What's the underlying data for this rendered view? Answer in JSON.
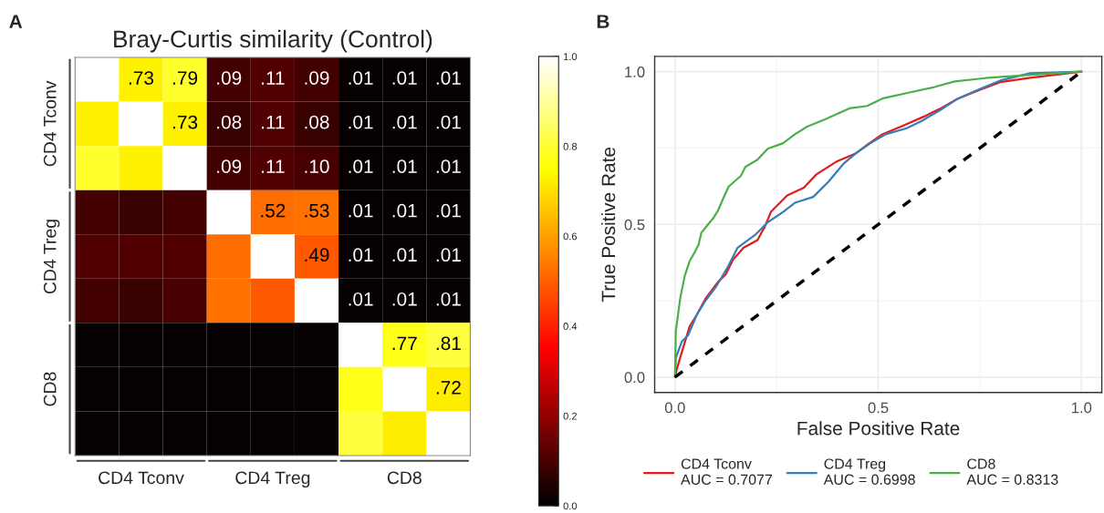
{
  "chart_data": [
    {
      "type": "heatmap",
      "title": "Bray-Curtis similarity (Control)",
      "annotations": [
        "A"
      ],
      "categories": [
        null,
        "CD4 Tconv",
        null,
        null,
        "CD4 Treg",
        null,
        null,
        "CD8",
        null
      ],
      "y_categories": [
        null,
        "CD4 Tconv",
        null,
        null,
        "CD4 Treg",
        null,
        null,
        "CD8",
        null
      ],
      "cells": [
        [
          1,
          0.73,
          0.79,
          0.09,
          0.11,
          0.09,
          0.01,
          0.01,
          0.01
        ],
        [
          0.73,
          1,
          0.73,
          0.08,
          0.11,
          0.08,
          0.01,
          0.01,
          0.01
        ],
        [
          0.79,
          0.73,
          1,
          0.09,
          0.11,
          0.1,
          0.01,
          0.01,
          0.01
        ],
        [
          0.09,
          0.08,
          0.09,
          1,
          0.52,
          0.53,
          0.01,
          0.01,
          0.01
        ],
        [
          0.11,
          0.11,
          0.11,
          0.52,
          1,
          0.49,
          0.01,
          0.01,
          0.01
        ],
        [
          0.09,
          0.08,
          0.1,
          0.53,
          0.49,
          1,
          0.01,
          0.01,
          0.01
        ],
        [
          0.01,
          0.01,
          0.01,
          0.01,
          0.01,
          0.01,
          1,
          0.77,
          0.81
        ],
        [
          0.01,
          0.01,
          0.01,
          0.01,
          0.01,
          0.01,
          0.77,
          1,
          0.72
        ],
        [
          0.01,
          0.01,
          0.01,
          0.01,
          0.01,
          0.01,
          0.81,
          0.72,
          1
        ]
      ],
      "cell_labels": [
        [
          null,
          ".73",
          ".79",
          ".09",
          ".11",
          ".09",
          ".01",
          ".01",
          ".01"
        ],
        [
          null,
          null,
          ".73",
          ".08",
          ".11",
          ".08",
          ".01",
          ".01",
          ".01"
        ],
        [
          null,
          null,
          null,
          ".09",
          ".11",
          ".10",
          ".01",
          ".01",
          ".01"
        ],
        [
          null,
          null,
          null,
          null,
          ".52",
          ".53",
          ".01",
          ".01",
          ".01"
        ],
        [
          null,
          null,
          null,
          null,
          null,
          ".49",
          ".01",
          ".01",
          ".01"
        ],
        [
          null,
          null,
          null,
          null,
          null,
          null,
          ".01",
          ".01",
          ".01"
        ],
        [
          null,
          null,
          null,
          null,
          null,
          null,
          null,
          ".77",
          ".81"
        ],
        [
          null,
          null,
          null,
          null,
          null,
          null,
          null,
          null,
          ".72"
        ],
        [
          null,
          null,
          null,
          null,
          null,
          null,
          null,
          null,
          null
        ]
      ],
      "clim": [
        0,
        1
      ],
      "cticks": [
        {
          "value": 0,
          "label": "0.0"
        },
        {
          "value": 0.2,
          "label": "0.2"
        },
        {
          "value": 0.4,
          "label": "0.4"
        },
        {
          "value": 0.6,
          "label": "0.6"
        },
        {
          "value": 0.8,
          "label": "0.8"
        },
        {
          "value": 1,
          "label": "1.0"
        }
      ]
    },
    {
      "type": "line",
      "annotations": [
        "B"
      ],
      "xlabel": "False Positive Rate",
      "ylabel": "True Positive Rate",
      "xlim": [
        -0.05,
        1.05
      ],
      "ylim": [
        -0.05,
        1.05
      ],
      "xticks": [
        {
          "value": 0,
          "label": "0.0"
        },
        {
          "value": 0.5,
          "label": "0.5"
        },
        {
          "value": 1,
          "label": "1.0"
        }
      ],
      "yticks": [
        {
          "value": 0,
          "label": "0.0"
        },
        {
          "value": 0.5,
          "label": "0.5"
        },
        {
          "value": 1,
          "label": "1.0"
        }
      ],
      "grid": true,
      "legend": "bottom",
      "series": [
        {
          "name": "CD4 Tconv\nAUC = 0.7077",
          "color": "#e41a1c",
          "x": [
            0,
            0.004,
            0.017,
            0.036,
            0.054,
            0.076,
            0.106,
            0.125,
            0.143,
            0.169,
            0.203,
            0.221,
            0.236,
            0.276,
            0.317,
            0.347,
            0.399,
            0.444,
            0.473,
            0.51,
            0.562,
            0.614,
            0.651,
            0.696,
            0.755,
            0.8,
            0.874,
            0.926,
            1
          ],
          "values": [
            0,
            0.024,
            0.083,
            0.166,
            0.205,
            0.259,
            0.312,
            0.337,
            0.385,
            0.424,
            0.449,
            0.493,
            0.541,
            0.595,
            0.62,
            0.663,
            0.707,
            0.732,
            0.761,
            0.795,
            0.824,
            0.854,
            0.878,
            0.912,
            0.943,
            0.966,
            0.98,
            0.988,
            1
          ]
        },
        {
          "name": "CD4 Treg\nAUC = 0.6998",
          "color": "#377eb8",
          "x": [
            0,
            0.002,
            0.017,
            0.032,
            0.054,
            0.074,
            0.102,
            0.132,
            0.154,
            0.199,
            0.228,
            0.266,
            0.295,
            0.34,
            0.377,
            0.414,
            0.444,
            0.481,
            0.518,
            0.57,
            0.607,
            0.651,
            0.696,
            0.755,
            0.8,
            0.874,
            1
          ],
          "values": [
            0,
            0.063,
            0.117,
            0.137,
            0.205,
            0.249,
            0.298,
            0.366,
            0.424,
            0.468,
            0.507,
            0.541,
            0.571,
            0.59,
            0.639,
            0.698,
            0.732,
            0.766,
            0.795,
            0.815,
            0.839,
            0.873,
            0.912,
            0.946,
            0.971,
            0.995,
            1
          ]
        },
        {
          "name": "CD8\nAUC = 0.8313",
          "color": "#4daf4a",
          "x": [
            0,
            0.002,
            0.013,
            0.024,
            0.036,
            0.047,
            0.058,
            0.065,
            0.08,
            0.095,
            0.106,
            0.117,
            0.132,
            0.162,
            0.173,
            0.203,
            0.228,
            0.266,
            0.295,
            0.325,
            0.369,
            0.429,
            0.473,
            0.51,
            0.577,
            0.636,
            0.688,
            0.763,
            0.874,
            1
          ],
          "values": [
            0,
            0.151,
            0.259,
            0.332,
            0.38,
            0.405,
            0.434,
            0.473,
            0.498,
            0.522,
            0.546,
            0.58,
            0.624,
            0.659,
            0.688,
            0.712,
            0.748,
            0.766,
            0.795,
            0.82,
            0.844,
            0.88,
            0.888,
            0.912,
            0.932,
            0.949,
            0.968,
            0.979,
            0.99,
            1
          ]
        },
        {
          "color": "#000000",
          "line_style": "dashed",
          "x": [
            0,
            1
          ],
          "values": [
            0,
            1
          ]
        }
      ]
    }
  ]
}
